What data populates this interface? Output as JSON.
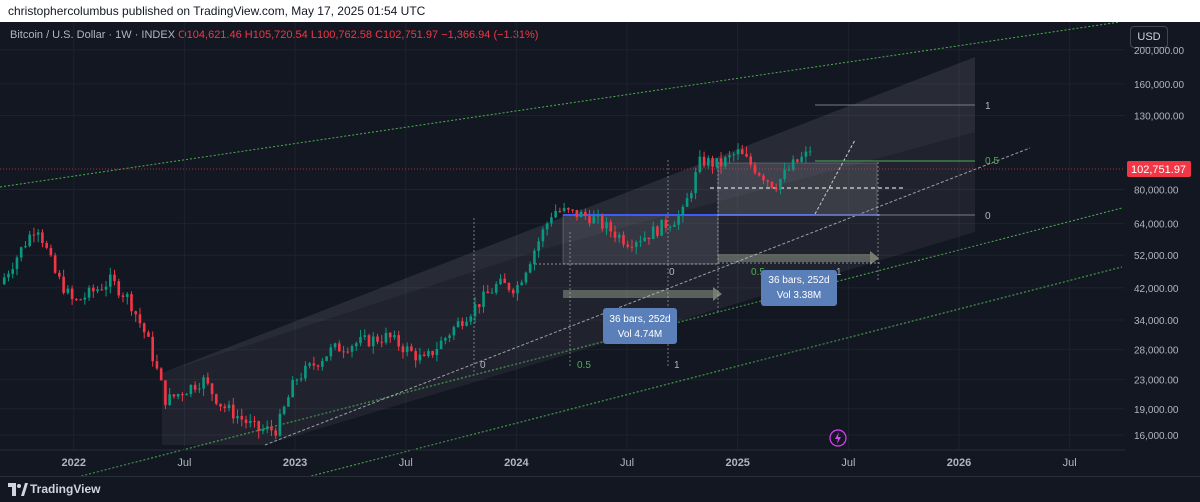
{
  "header": {
    "publisher": "christophercolumbus published on TradingView.com, May 17, 2025 01:54 UTC"
  },
  "symbol": {
    "name": "Bitcoin / U.S. Dollar · 1W · INDEX",
    "open": "O104,621.46",
    "high": "H105,720.54",
    "low": "L100,762.58",
    "close": "C102,751.97",
    "change": "−1,366.94 (−1.31%)"
  },
  "currency_button": "USD",
  "last_price": "102,751.97",
  "colors": {
    "up": "#089981",
    "down": "#f23645",
    "background": "#131722",
    "label_bg": "#5b7fb8",
    "fib_green": "#4caf50"
  },
  "price_axis": [
    "200,000.00",
    "160,000.00",
    "130,000.00",
    "80,000.00",
    "64,000.00",
    "52,000.00",
    "42,000.00",
    "34,000.00",
    "28,000.00",
    "23,000.00",
    "19,000.00",
    "16,000.00"
  ],
  "time_axis": [
    "2022",
    "Jul",
    "2023",
    "Jul",
    "2024",
    "Jul",
    "2025",
    "Jul",
    "2026",
    "Jul"
  ],
  "annotations": {
    "box1": {
      "line1": "36 bars, 252d",
      "line2": "Vol 4.74M"
    },
    "box2": {
      "line1": "36 bars, 252d",
      "line2": "Vol 3.38M"
    },
    "fib_a": {
      "half": "0.5",
      "one": "1",
      "zero": "0"
    },
    "fib_b": {
      "half": "0.5",
      "one": "1",
      "zero": "0"
    },
    "fib_top": {
      "one": "1",
      "half": "0.5",
      "zero": "0"
    }
  },
  "chart_data": {
    "type": "candlestick",
    "title": "Bitcoin / U.S. Dollar · 1W · INDEX",
    "last_close": 102751.97,
    "y_scale": "log",
    "ylim": [
      14500,
      240000
    ],
    "xlim": [
      "2021-09",
      "2026-10"
    ],
    "series": [
      {
        "name": "BTCUSD",
        "close_path": [
          [
            "2021-09",
            43000
          ],
          [
            "2021-11",
            64000
          ],
          [
            "2021-12",
            46000
          ],
          [
            "2022-01",
            38000
          ],
          [
            "2022-03",
            44000
          ],
          [
            "2022-04",
            39000
          ],
          [
            "2022-05",
            30000
          ],
          [
            "2022-06",
            20000
          ],
          [
            "2022-08",
            23000
          ],
          [
            "2022-09",
            19500
          ],
          [
            "2022-11",
            16500
          ],
          [
            "2022-12",
            16600
          ],
          [
            "2023-01",
            23000
          ],
          [
            "2023-03",
            28000
          ],
          [
            "2023-04",
            29000
          ],
          [
            "2023-06",
            30500
          ],
          [
            "2023-08",
            26000
          ],
          [
            "2023-10",
            34000
          ],
          [
            "2023-12",
            43000
          ],
          [
            "2024-01",
            42000
          ],
          [
            "2024-03",
            70000
          ],
          [
            "2024-05",
            67000
          ],
          [
            "2024-07",
            57000
          ],
          [
            "2024-08",
            59000
          ],
          [
            "2024-10",
            68000
          ],
          [
            "2024-11",
            97000
          ],
          [
            "2024-12",
            94000
          ],
          [
            "2025-01",
            102000
          ],
          [
            "2025-03",
            82000
          ],
          [
            "2025-04",
            94000
          ],
          [
            "2025-05",
            102751.97
          ]
        ]
      }
    ]
  }
}
